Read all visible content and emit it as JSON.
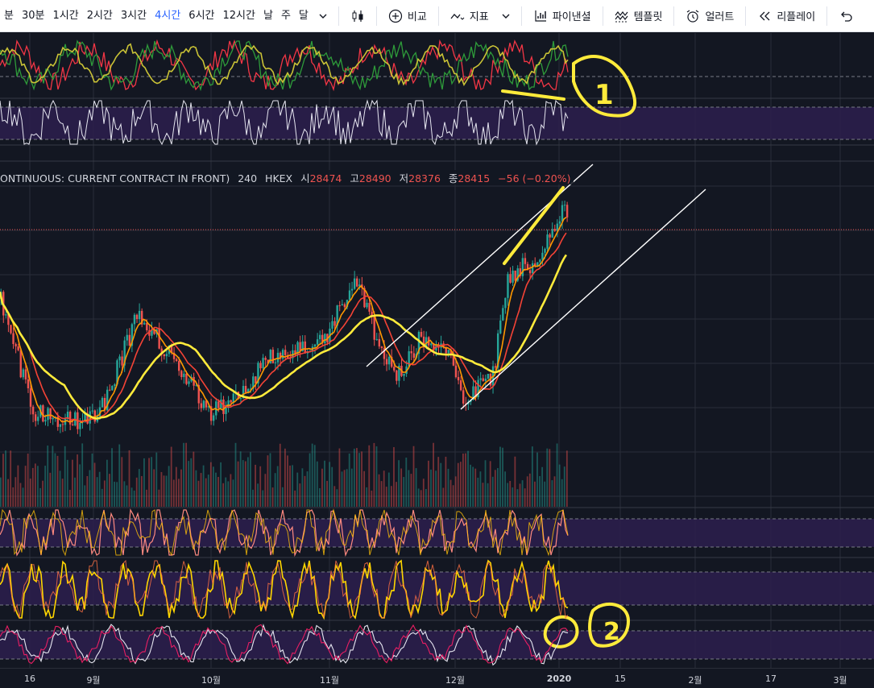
{
  "toolbar": {
    "timeframes": [
      "분",
      "30분",
      "1시간",
      "2시간",
      "3시간",
      "4시간",
      "6시간",
      "12시간",
      "날",
      "주",
      "달"
    ],
    "active_timeframe": "4시간",
    "buttons": {
      "compare": "비교",
      "indicators": "지표",
      "financials": "파이낸셜",
      "templates": "템플릿",
      "alert": "얼러트",
      "replay": "리플레이"
    },
    "icons": {
      "dropdown": "chevron-down-icon",
      "chart_style": "candlestick-icon",
      "compare": "plus-circle-icon",
      "indicators": "indicator-wave-icon",
      "financials": "bar-chart-icon",
      "templates": "template-icon",
      "alert": "alarm-clock-icon",
      "replay": "rewind-icon",
      "undo": "undo-icon"
    }
  },
  "legend": {
    "symbol": "ONTINUOUS: CURRENT CONTRACT IN FRONT)",
    "interval": "240",
    "exchange": "HKEX",
    "open_label": "시",
    "open": "28474",
    "high_label": "고",
    "high": "28490",
    "low_label": "저",
    "low": "28376",
    "close_label": "종",
    "close": "28415",
    "change": "−56 (−0.20%)"
  },
  "annotations": {
    "mark_1": "1",
    "mark_2": "2"
  },
  "time_axis": {
    "labels": [
      "16",
      "9월",
      "10월",
      "11월",
      "12월",
      "2020",
      "15",
      "2월",
      "17",
      "3월"
    ]
  },
  "colors": {
    "background": "#131722",
    "grid": "#2a2e39",
    "up": "#26a69a",
    "down": "#ef5350",
    "ma_fast": "#ff9800",
    "ma_mid": "#f44336",
    "ma_slow": "#ffeb3b",
    "osc_band": "#2d1f4d",
    "annotation": "#ffeb3b",
    "trendline": "#ffffff"
  }
}
